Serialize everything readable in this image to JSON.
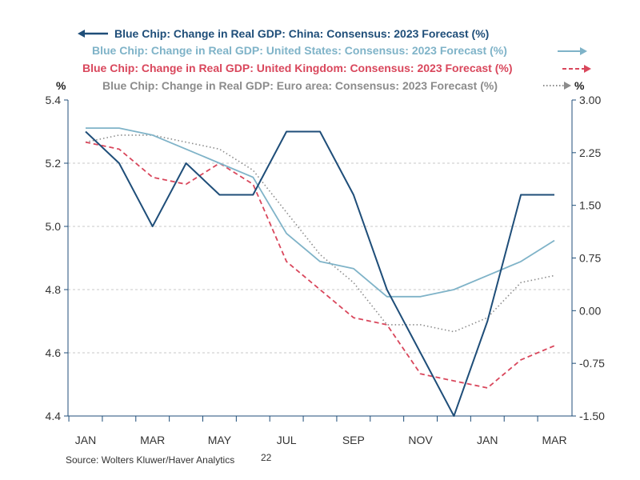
{
  "chart_data": {
    "type": "line",
    "x_tick_labels": [
      "JAN",
      "MAR",
      "MAY",
      "JUL",
      "SEP",
      "NOV",
      "JAN",
      "MAR"
    ],
    "x_tick_year_suffix": "22",
    "left_axis": {
      "unit": "%",
      "range": [
        4.4,
        5.4
      ],
      "ticks": [
        "5.4",
        "5.2",
        "5.0",
        "4.8",
        "4.6",
        "4.4"
      ]
    },
    "right_axis": {
      "unit": "%",
      "range": [
        -1.5,
        3.0
      ],
      "ticks": [
        "3.00",
        "2.25",
        "1.50",
        "0.75",
        "0.00",
        "-0.75",
        "-1.50"
      ]
    },
    "grid": "horizontal-dashed",
    "legend_position": "top",
    "source": "Source:  Wolters Kluwer/Haver Analytics",
    "series": [
      {
        "name": "Blue Chip: Change in Real GDP: China: Consensus: 2023 Forecast (%)",
        "axis": "left",
        "color": "#1f4e79",
        "style": "solid",
        "legend_arrow": "left",
        "values": [
          5.3,
          5.2,
          5.0,
          5.2,
          5.1,
          5.1,
          5.3,
          5.3,
          5.1,
          4.8,
          4.6,
          4.4,
          4.7,
          5.1,
          5.1
        ]
      },
      {
        "name": "Blue Chip: Change in Real GDP: United States: Consensus: 2023 Forecast (%)",
        "axis": "right",
        "color": "#7fb3c8",
        "style": "solid",
        "legend_arrow": "right",
        "values": [
          2.6,
          2.6,
          2.5,
          2.3,
          2.1,
          1.9,
          1.1,
          0.7,
          0.6,
          0.2,
          0.2,
          0.3,
          0.5,
          0.7,
          1.0
        ]
      },
      {
        "name": "Blue Chip: Change in Real GDP: United Kingdom: Consensus: 2023 Forecast (%)",
        "axis": "right",
        "color": "#d9475c",
        "style": "dashed",
        "legend_arrow": "right",
        "values": [
          2.4,
          2.3,
          1.9,
          1.8,
          2.1,
          1.8,
          0.7,
          0.3,
          -0.1,
          -0.2,
          -0.9,
          -1.0,
          -1.1,
          -0.7,
          -0.5
        ]
      },
      {
        "name": "Blue Chip: Change in Real GDP: Euro area: Consensus: 2023 Forecast (%)",
        "axis": "right",
        "color": "#8c8c8c",
        "style": "dotted",
        "legend_arrow": "right",
        "values": [
          2.4,
          2.5,
          2.5,
          2.4,
          2.3,
          2.0,
          1.4,
          0.8,
          0.4,
          -0.2,
          -0.2,
          -0.3,
          -0.1,
          0.4,
          0.5
        ]
      }
    ]
  }
}
